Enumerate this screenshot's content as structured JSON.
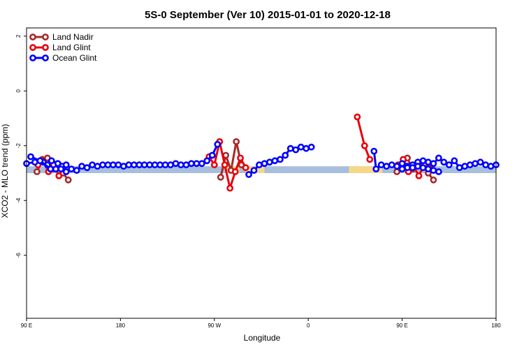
{
  "chart_data": {
    "type": "line",
    "title": "5S-0 September (Ver 10)   2015-01-01 to 2020-12-18",
    "xlabel": "Longitude",
    "ylabel": "XCO2 - MLO trend (ppm)",
    "xlim": [
      90,
      540
    ],
    "ylim": [
      -8.3,
      2.3
    ],
    "x_ticks": [
      {
        "value": 90,
        "label": "90 E"
      },
      {
        "value": 180,
        "label": "180"
      },
      {
        "value": 270,
        "label": "90 W"
      },
      {
        "value": 360,
        "label": "0"
      },
      {
        "value": 450,
        "label": "90 E"
      },
      {
        "value": 540,
        "label": "180"
      }
    ],
    "y_ticks": [
      {
        "value": 2,
        "label": "2"
      },
      {
        "value": 0,
        "label": "0"
      },
      {
        "value": -2,
        "label": "-2"
      },
      {
        "value": -4,
        "label": "-4"
      },
      {
        "value": -6,
        "label": "-6"
      }
    ],
    "legend_position": "top-left",
    "grid": false,
    "bands": [
      {
        "x": [
          90,
          540
        ],
        "y": [
          -2.75,
          -3.0
        ],
        "color": "#a7bfdc"
      },
      {
        "x": [
          281,
          294
        ],
        "y": [
          -2.75,
          -3.0
        ],
        "color": "#f6d889"
      },
      {
        "x": [
          300,
          318
        ],
        "y": [
          -2.75,
          -3.0
        ],
        "color": "#f6d889"
      },
      {
        "x": [
          399,
          431
        ],
        "y": [
          -2.75,
          -3.0
        ],
        "color": "#f6d889"
      }
    ],
    "series": [
      {
        "name": "Land Nadir",
        "color": "#a52a2a",
        "segments": [
          {
            "x": [
              100,
              105,
              110,
              115,
              120,
              125,
              130
            ],
            "y": [
              -2.95,
              -2.5,
              -2.45,
              -2.85,
              -2.65,
              -3.0,
              -3.25
            ]
          },
          {
            "x": [
              276,
              281,
              286,
              291,
              296
            ],
            "y": [
              -3.15,
              -2.35,
              -2.9,
              -1.85,
              -2.7
            ]
          },
          {
            "x": [
              445,
              450,
              455,
              460,
              465,
              470,
              475,
              480
            ],
            "y": [
              -2.95,
              -2.75,
              -2.45,
              -2.85,
              -2.65,
              -2.75,
              -3.0,
              -3.25
            ]
          }
        ]
      },
      {
        "name": "Land Glint",
        "color": "#e8000b",
        "segments": [
          {
            "x": [
              101,
              106,
              111,
              116,
              121,
              126
            ],
            "y": [
              -2.7,
              -2.55,
              -2.95,
              -2.7,
              -3.1,
              -2.75
            ]
          },
          {
            "x": [
              265,
              270,
              275,
              280,
              285,
              290,
              295,
              300
            ],
            "y": [
              -2.4,
              -2.7,
              -1.85,
              -2.7,
              -3.55,
              -2.95,
              -2.45,
              -2.8
            ]
          },
          {
            "x": [
              407,
              414,
              419
            ],
            "y": [
              -0.95,
              -2.0,
              -2.5
            ]
          },
          {
            "x": [
              446,
              451,
              456,
              461,
              466,
              471,
              476
            ],
            "y": [
              -2.7,
              -2.5,
              -2.95,
              -2.75,
              -3.1,
              -2.7,
              -2.8
            ]
          }
        ]
      },
      {
        "name": "Ocean Glint",
        "color": "#0000ff",
        "segments": [
          {
            "x": [
              90,
              98,
              106,
              110,
              114,
              120,
              124,
              128,
              133,
              138,
              143,
              148,
              153,
              158,
              163,
              168,
              173,
              178,
              183,
              188,
              193,
              198,
              203,
              208,
              213,
              218,
              223,
              228,
              233,
              238,
              243,
              248,
              253,
              258,
              263,
              268,
              273
            ],
            "y": [
              -2.65,
              -2.6,
              -2.6,
              -2.7,
              -2.55,
              -2.65,
              -2.75,
              -2.7,
              -2.85,
              -2.9,
              -2.75,
              -2.8,
              -2.7,
              -2.75,
              -2.7,
              -2.7,
              -2.7,
              -2.7,
              -2.75,
              -2.7,
              -2.7,
              -2.7,
              -2.7,
              -2.7,
              -2.7,
              -2.7,
              -2.7,
              -2.7,
              -2.65,
              -2.7,
              -2.7,
              -2.65,
              -2.65,
              -2.65,
              -2.55,
              -2.35,
              -1.95
            ]
          },
          {
            "x": [
              94,
              103,
              113,
              118,
              123,
              128
            ],
            "y": [
              -2.4,
              -2.55,
              -2.85,
              -2.85,
              -2.85,
              -2.95
            ]
          },
          {
            "x": [
              303,
              308,
              313,
              318,
              323,
              328,
              333,
              338,
              343,
              348,
              353,
              358,
              363
            ],
            "y": [
              -3.05,
              -2.9,
              -2.7,
              -2.65,
              -2.6,
              -2.55,
              -2.5,
              -2.35,
              -2.1,
              -2.15,
              -2.05,
              -2.1,
              -2.05
            ]
          },
          {
            "x": [
              423,
              425,
              430,
              435,
              440,
              445,
              450,
              455,
              460,
              465,
              470,
              475,
              480,
              485,
              490,
              495,
              500,
              505,
              510,
              515,
              520,
              525,
              530,
              535,
              540
            ],
            "y": [
              -2.2,
              -2.85,
              -2.7,
              -2.75,
              -2.7,
              -2.75,
              -2.65,
              -2.75,
              -2.7,
              -2.6,
              -2.55,
              -2.6,
              -2.65,
              -2.45,
              -2.6,
              -2.7,
              -2.55,
              -2.8,
              -2.75,
              -2.7,
              -2.65,
              -2.6,
              -2.7,
              -2.75,
              -2.7
            ]
          },
          {
            "x": [
              450,
              455,
              460,
              465,
              470,
              475,
              480,
              485
            ],
            "y": [
              -2.85,
              -2.8,
              -2.8,
              -2.75,
              -2.8,
              -2.85,
              -2.9,
              -2.95
            ]
          }
        ]
      }
    ]
  }
}
